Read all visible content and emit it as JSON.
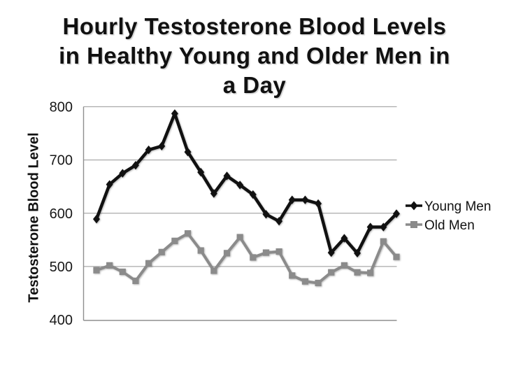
{
  "slide": {
    "title_line1": "Hourly Testosterone Blood Levels",
    "title_line2": "in Healthy Young and Older Men in",
    "title_line3": "a Day"
  },
  "chart_data": {
    "type": "line",
    "title": "Hourly Testosterone Blood Levels in Healthy Young and Older Men in a Day",
    "xlabel": "",
    "ylabel": "Testosterone Blood Level",
    "ylim": [
      400,
      800
    ],
    "yticks": [
      400,
      500,
      600,
      700,
      800
    ],
    "grid": "horizontal",
    "legend_position": "right",
    "x": [
      1,
      2,
      3,
      4,
      5,
      6,
      7,
      8,
      9,
      10,
      11,
      12,
      13,
      14,
      15,
      16,
      17,
      18,
      19,
      20,
      21,
      22,
      23,
      24
    ],
    "series": [
      {
        "name": "Young Men",
        "marker": "diamond",
        "color": "#111111",
        "values": [
          589,
          654,
          675,
          690,
          719,
          726,
          787,
          715,
          677,
          637,
          670,
          653,
          635,
          598,
          585,
          625,
          625,
          618,
          526,
          553,
          525,
          574,
          574,
          599
        ]
      },
      {
        "name": "Old Men",
        "marker": "square",
        "color": "#8b8b8b",
        "values": [
          493,
          502,
          490,
          473,
          506,
          527,
          548,
          562,
          530,
          492,
          525,
          555,
          517,
          526,
          528,
          483,
          472,
          469,
          489,
          502,
          489,
          488,
          547,
          518
        ]
      }
    ]
  },
  "colors": {
    "background": "#ffffff",
    "title_text": "#111111",
    "young_men_series": "#111111",
    "old_men_series": "#8b8b8b",
    "gridline": "#aaaaaa",
    "axis_line": "#8f8f8f",
    "tick_label": "#171717"
  }
}
